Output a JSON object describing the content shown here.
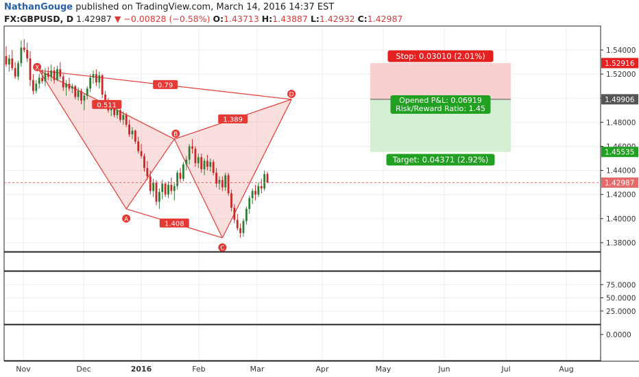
{
  "header": {
    "author": "NathanGouge",
    "published_text": "published on TradingView.com, March 14, 2016 14:37 EST",
    "symbol": "FX:GBPUSD, D",
    "last": "1.42987",
    "change": "−0.00828 (−0.58%)",
    "open_label": "O:",
    "open": "1.43713",
    "high_label": "H:",
    "high": "1.43887",
    "low_label": "L:",
    "low": "1.42932",
    "close_label": "C:",
    "close": "1.42987"
  },
  "colors": {
    "up": "#2e7d32",
    "down": "#c62828",
    "pattern": "#e53935",
    "stop_zone": "#f9d0d0",
    "target_zone": "#d4efd4",
    "stop_badge": "#e52020",
    "target_badge": "#22a022",
    "grid": "#ececec"
  },
  "chart_data": {
    "type": "candlestick",
    "symbol": "FX:GBPUSD",
    "timeframe": "D",
    "x_axis_labels": [
      "Nov",
      "Dec",
      "2016",
      "Feb",
      "Mar",
      "Apr",
      "May",
      "Jun",
      "Jul",
      "Aug"
    ],
    "y_axis": {
      "ticks": [
        "1.54000",
        "1.52000",
        "1.50000",
        "1.48000",
        "1.46000",
        "1.44000",
        "1.42000",
        "1.40000",
        "1.38000"
      ],
      "range": [
        1.3726,
        1.5599
      ]
    },
    "price_badges": [
      {
        "label": "1.52916",
        "value": 1.52916,
        "color": "#e52020"
      },
      {
        "label": "1.49906",
        "value": 1.49906,
        "color": "#555555"
      },
      {
        "label": "1.45535",
        "value": 1.45535,
        "color": "#22a022"
      },
      {
        "label": "1.42987",
        "value": 1.42987,
        "color": "#e56a6a"
      }
    ],
    "last_price_line": 1.42987,
    "candles": [
      {
        "o": 1.535,
        "h": 1.543,
        "l": 1.526,
        "c": 1.528
      },
      {
        "o": 1.528,
        "h": 1.536,
        "l": 1.522,
        "c": 1.533
      },
      {
        "o": 1.533,
        "h": 1.54,
        "l": 1.523,
        "c": 1.525
      },
      {
        "o": 1.525,
        "h": 1.53,
        "l": 1.516,
        "c": 1.518
      },
      {
        "o": 1.518,
        "h": 1.531,
        "l": 1.515,
        "c": 1.529
      },
      {
        "o": 1.529,
        "h": 1.548,
        "l": 1.526,
        "c": 1.542
      },
      {
        "o": 1.542,
        "h": 1.549,
        "l": 1.538,
        "c": 1.54
      },
      {
        "o": 1.54,
        "h": 1.546,
        "l": 1.53,
        "c": 1.533
      },
      {
        "o": 1.533,
        "h": 1.539,
        "l": 1.51,
        "c": 1.515
      },
      {
        "o": 1.515,
        "h": 1.52,
        "l": 1.503,
        "c": 1.506
      },
      {
        "o": 1.506,
        "h": 1.515,
        "l": 1.504,
        "c": 1.512
      },
      {
        "o": 1.512,
        "h": 1.52,
        "l": 1.508,
        "c": 1.517
      },
      {
        "o": 1.517,
        "h": 1.524,
        "l": 1.512,
        "c": 1.514
      },
      {
        "o": 1.514,
        "h": 1.525,
        "l": 1.51,
        "c": 1.521
      },
      {
        "o": 1.521,
        "h": 1.526,
        "l": 1.515,
        "c": 1.518
      },
      {
        "o": 1.518,
        "h": 1.528,
        "l": 1.514,
        "c": 1.523
      },
      {
        "o": 1.523,
        "h": 1.526,
        "l": 1.512,
        "c": 1.515
      },
      {
        "o": 1.515,
        "h": 1.527,
        "l": 1.514,
        "c": 1.524
      },
      {
        "o": 1.524,
        "h": 1.53,
        "l": 1.516,
        "c": 1.518
      },
      {
        "o": 1.518,
        "h": 1.52,
        "l": 1.506,
        "c": 1.509
      },
      {
        "o": 1.509,
        "h": 1.515,
        "l": 1.502,
        "c": 1.512
      },
      {
        "o": 1.512,
        "h": 1.517,
        "l": 1.506,
        "c": 1.508
      },
      {
        "o": 1.508,
        "h": 1.512,
        "l": 1.504,
        "c": 1.51
      },
      {
        "o": 1.51,
        "h": 1.511,
        "l": 1.499,
        "c": 1.501
      },
      {
        "o": 1.501,
        "h": 1.509,
        "l": 1.498,
        "c": 1.506
      },
      {
        "o": 1.506,
        "h": 1.508,
        "l": 1.495,
        "c": 1.498
      },
      {
        "o": 1.498,
        "h": 1.504,
        "l": 1.49,
        "c": 1.502
      },
      {
        "o": 1.502,
        "h": 1.51,
        "l": 1.499,
        "c": 1.508
      },
      {
        "o": 1.508,
        "h": 1.52,
        "l": 1.505,
        "c": 1.517
      },
      {
        "o": 1.517,
        "h": 1.523,
        "l": 1.512,
        "c": 1.52
      },
      {
        "o": 1.52,
        "h": 1.524,
        "l": 1.51,
        "c": 1.513
      },
      {
        "o": 1.513,
        "h": 1.522,
        "l": 1.508,
        "c": 1.519
      },
      {
        "o": 1.519,
        "h": 1.52,
        "l": 1.5,
        "c": 1.503
      },
      {
        "o": 1.503,
        "h": 1.506,
        "l": 1.493,
        "c": 1.496
      },
      {
        "o": 1.496,
        "h": 1.5,
        "l": 1.488,
        "c": 1.49
      },
      {
        "o": 1.49,
        "h": 1.496,
        "l": 1.485,
        "c": 1.493
      },
      {
        "o": 1.493,
        "h": 1.495,
        "l": 1.484,
        "c": 1.486
      },
      {
        "o": 1.486,
        "h": 1.493,
        "l": 1.483,
        "c": 1.49
      },
      {
        "o": 1.49,
        "h": 1.491,
        "l": 1.48,
        "c": 1.482
      },
      {
        "o": 1.482,
        "h": 1.489,
        "l": 1.478,
        "c": 1.486
      },
      {
        "o": 1.486,
        "h": 1.488,
        "l": 1.476,
        "c": 1.478
      },
      {
        "o": 1.478,
        "h": 1.482,
        "l": 1.468,
        "c": 1.47
      },
      {
        "o": 1.47,
        "h": 1.476,
        "l": 1.466,
        "c": 1.473
      },
      {
        "o": 1.473,
        "h": 1.474,
        "l": 1.462,
        "c": 1.464
      },
      {
        "o": 1.464,
        "h": 1.468,
        "l": 1.454,
        "c": 1.456
      },
      {
        "o": 1.456,
        "h": 1.462,
        "l": 1.45,
        "c": 1.452
      },
      {
        "o": 1.452,
        "h": 1.454,
        "l": 1.439,
        "c": 1.442
      },
      {
        "o": 1.442,
        "h": 1.448,
        "l": 1.432,
        "c": 1.435
      },
      {
        "o": 1.435,
        "h": 1.44,
        "l": 1.42,
        "c": 1.423
      },
      {
        "o": 1.423,
        "h": 1.433,
        "l": 1.418,
        "c": 1.43
      },
      {
        "o": 1.43,
        "h": 1.432,
        "l": 1.411,
        "c": 1.414
      },
      {
        "o": 1.414,
        "h": 1.425,
        "l": 1.408,
        "c": 1.422
      },
      {
        "o": 1.422,
        "h": 1.432,
        "l": 1.416,
        "c": 1.429
      },
      {
        "o": 1.429,
        "h": 1.43,
        "l": 1.418,
        "c": 1.42
      },
      {
        "o": 1.42,
        "h": 1.431,
        "l": 1.417,
        "c": 1.428
      },
      {
        "o": 1.428,
        "h": 1.434,
        "l": 1.42,
        "c": 1.423
      },
      {
        "o": 1.423,
        "h": 1.43,
        "l": 1.415,
        "c": 1.427
      },
      {
        "o": 1.427,
        "h": 1.44,
        "l": 1.424,
        "c": 1.438
      },
      {
        "o": 1.438,
        "h": 1.442,
        "l": 1.43,
        "c": 1.433
      },
      {
        "o": 1.433,
        "h": 1.447,
        "l": 1.431,
        "c": 1.445
      },
      {
        "o": 1.445,
        "h": 1.452,
        "l": 1.44,
        "c": 1.449
      },
      {
        "o": 1.449,
        "h": 1.462,
        "l": 1.445,
        "c": 1.46
      },
      {
        "o": 1.46,
        "h": 1.466,
        "l": 1.454,
        "c": 1.458
      },
      {
        "o": 1.458,
        "h": 1.46,
        "l": 1.443,
        "c": 1.446
      },
      {
        "o": 1.446,
        "h": 1.454,
        "l": 1.442,
        "c": 1.451
      },
      {
        "o": 1.451,
        "h": 1.454,
        "l": 1.438,
        "c": 1.441
      },
      {
        "o": 1.441,
        "h": 1.45,
        "l": 1.436,
        "c": 1.448
      },
      {
        "o": 1.448,
        "h": 1.453,
        "l": 1.44,
        "c": 1.443
      },
      {
        "o": 1.443,
        "h": 1.45,
        "l": 1.439,
        "c": 1.447
      },
      {
        "o": 1.447,
        "h": 1.449,
        "l": 1.436,
        "c": 1.438
      },
      {
        "o": 1.438,
        "h": 1.442,
        "l": 1.426,
        "c": 1.429
      },
      {
        "o": 1.429,
        "h": 1.435,
        "l": 1.424,
        "c": 1.432
      },
      {
        "o": 1.432,
        "h": 1.435,
        "l": 1.423,
        "c": 1.426
      },
      {
        "o": 1.426,
        "h": 1.438,
        "l": 1.423,
        "c": 1.436
      },
      {
        "o": 1.436,
        "h": 1.438,
        "l": 1.419,
        "c": 1.421
      },
      {
        "o": 1.421,
        "h": 1.424,
        "l": 1.406,
        "c": 1.409
      },
      {
        "o": 1.409,
        "h": 1.412,
        "l": 1.396,
        "c": 1.399
      },
      {
        "o": 1.399,
        "h": 1.404,
        "l": 1.39,
        "c": 1.392
      },
      {
        "o": 1.392,
        "h": 1.396,
        "l": 1.384,
        "c": 1.388
      },
      {
        "o": 1.388,
        "h": 1.4,
        "l": 1.385,
        "c": 1.398
      },
      {
        "o": 1.398,
        "h": 1.41,
        "l": 1.395,
        "c": 1.408
      },
      {
        "o": 1.408,
        "h": 1.419,
        "l": 1.404,
        "c": 1.417
      },
      {
        "o": 1.417,
        "h": 1.425,
        "l": 1.412,
        "c": 1.423
      },
      {
        "o": 1.423,
        "h": 1.428,
        "l": 1.415,
        "c": 1.42
      },
      {
        "o": 1.42,
        "h": 1.43,
        "l": 1.418,
        "c": 1.427
      },
      {
        "o": 1.427,
        "h": 1.433,
        "l": 1.421,
        "c": 1.425
      },
      {
        "o": 1.425,
        "h": 1.44,
        "l": 1.423,
        "c": 1.437
      },
      {
        "o": 1.437,
        "h": 1.4389,
        "l": 1.4293,
        "c": 1.4299
      }
    ],
    "pattern": {
      "points": [
        {
          "label": "X",
          "idx": 11,
          "price": 1.523
        },
        {
          "label": "A",
          "idx": 40,
          "price": 1.408
        },
        {
          "label": "B",
          "idx": 56,
          "price": 1.466
        },
        {
          "label": "C",
          "idx": 72,
          "price": 1.384
        },
        {
          "label": "D",
          "idx": 95,
          "price": 1.499
        }
      ],
      "ratios": [
        {
          "label": "0.511",
          "value": 0.511,
          "between": "XB"
        },
        {
          "label": "1.408",
          "value": 1.408,
          "between": "AC"
        },
        {
          "label": "1.389",
          "value": 1.389,
          "between": "BD"
        },
        {
          "label": "0.79",
          "value": 0.79,
          "between": "XD"
        }
      ]
    },
    "position": {
      "entry": 1.49906,
      "stop": 1.52916,
      "target": 1.45535,
      "stop_label": "Stop: 0.03010 (2.01%)",
      "target_label": "Target: 0.04371 (2.92%)",
      "pnl_label": "Opened P&L: 0.06919",
      "rr_label": "Risk/Reward Ratio: 1.45"
    },
    "indicator_panel": {
      "ticks": [
        "75.0000",
        "50.0000",
        "25.0000"
      ],
      "range": [
        0,
        100
      ]
    },
    "third_panel": {
      "ticks": [
        "0.0000"
      ]
    }
  }
}
